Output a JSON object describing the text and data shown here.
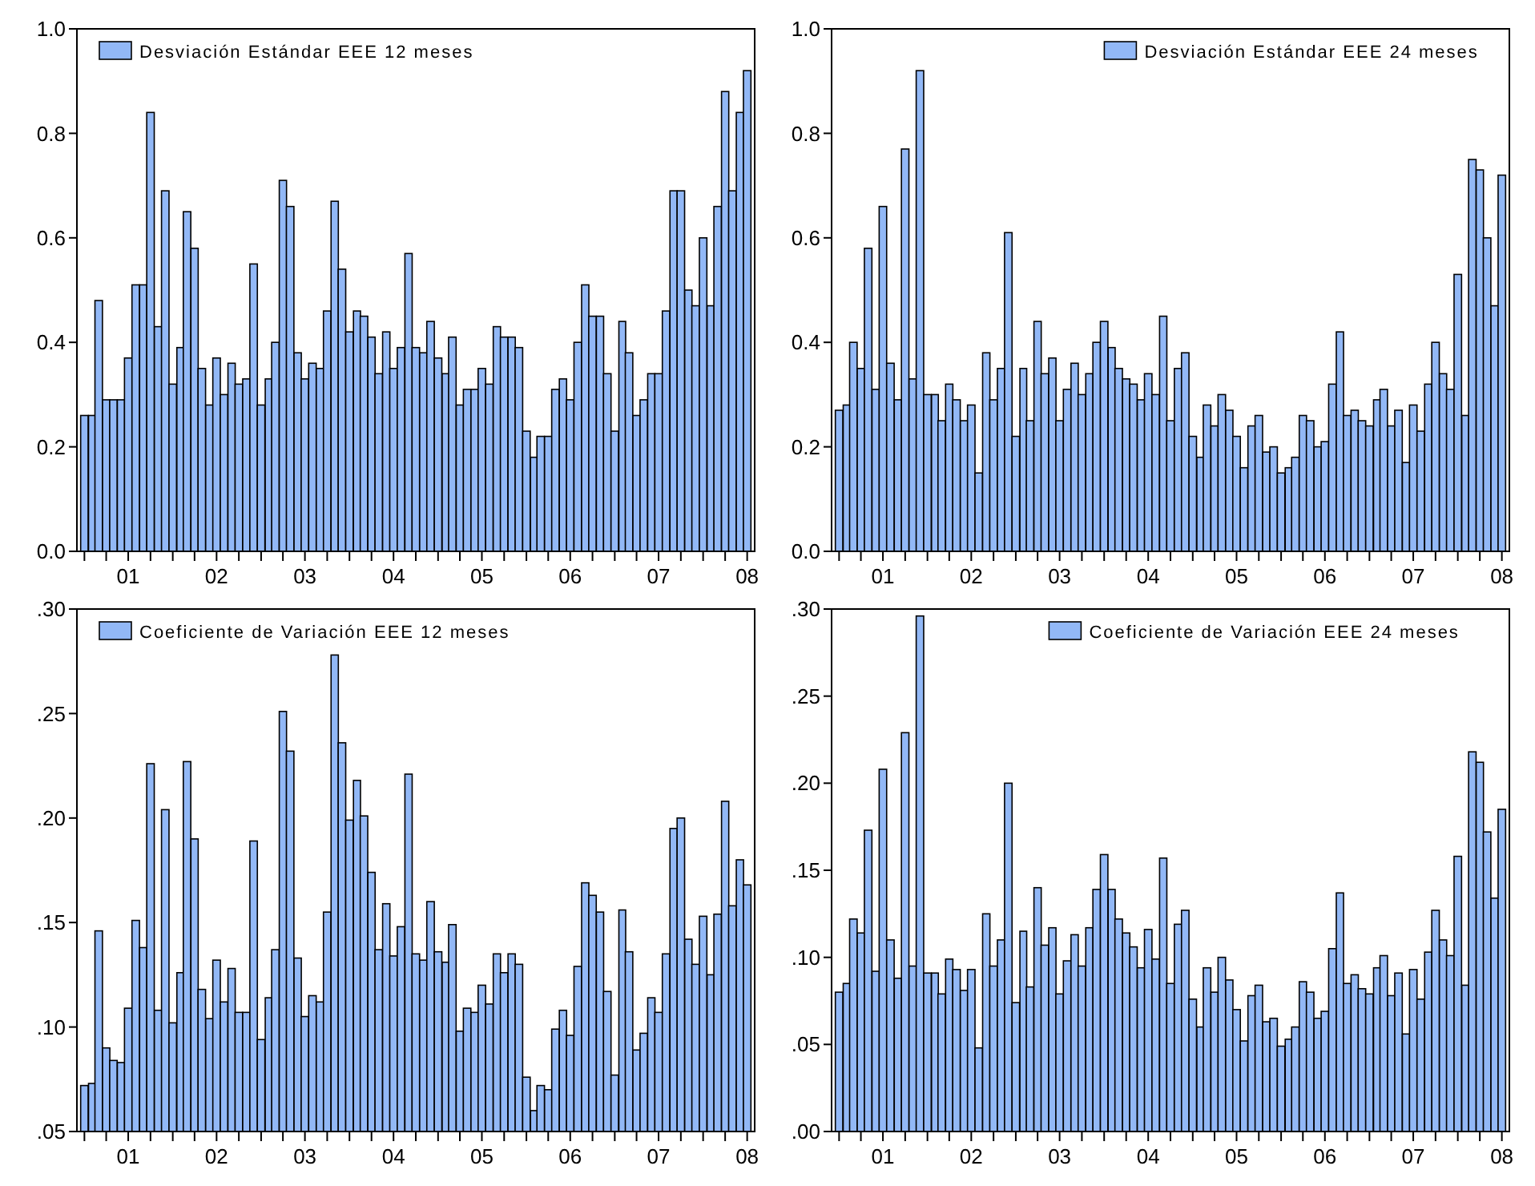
{
  "chart_data": [
    {
      "type": "bar",
      "legend": "top left",
      "xlim": [
        "2000-12",
        "2008-08"
      ],
      "ylim": [
        0,
        1.0
      ],
      "yticks": [
        {
          "value": 0,
          "label": "0.0"
        },
        {
          "value": 0.2,
          "label": "0.2"
        },
        {
          "value": 0.4,
          "label": "0.4"
        },
        {
          "value": 0.6,
          "label": "0.6"
        },
        {
          "value": 0.8,
          "label": "0.8"
        },
        {
          "value": 1.0,
          "label": "1.0"
        }
      ],
      "xticks": [
        {
          "value": "2001-01",
          "label": null
        },
        {
          "value": "2001-04",
          "label": null
        },
        {
          "value": "2001-07",
          "label": "01"
        },
        {
          "value": "2001-10",
          "label": null
        },
        {
          "value": "2002-01",
          "label": null
        },
        {
          "value": "2002-04",
          "label": null
        },
        {
          "value": "2002-07",
          "label": "02"
        },
        {
          "value": "2002-10",
          "label": null
        },
        {
          "value": "2003-01",
          "label": null
        },
        {
          "value": "2003-04",
          "label": null
        },
        {
          "value": "2003-07",
          "label": "03"
        },
        {
          "value": "2003-10",
          "label": null
        },
        {
          "value": "2004-01",
          "label": null
        },
        {
          "value": "2004-04",
          "label": null
        },
        {
          "value": "2004-07",
          "label": "04"
        },
        {
          "value": "2004-10",
          "label": null
        },
        {
          "value": "2005-01",
          "label": null
        },
        {
          "value": "2005-04",
          "label": null
        },
        {
          "value": "2005-07",
          "label": "05"
        },
        {
          "value": "2005-10",
          "label": null
        },
        {
          "value": "2006-01",
          "label": null
        },
        {
          "value": "2006-04",
          "label": null
        },
        {
          "value": "2006-07",
          "label": "06"
        },
        {
          "value": "2006-10",
          "label": null
        },
        {
          "value": "2007-01",
          "label": null
        },
        {
          "value": "2007-04",
          "label": null
        },
        {
          "value": "2007-07",
          "label": "07"
        },
        {
          "value": "2007-10",
          "label": null
        },
        {
          "value": "2008-01",
          "label": null
        },
        {
          "value": "2008-04",
          "label": null
        },
        {
          "value": "2008-07",
          "label": "08"
        }
      ],
      "x": [
        "2001-01",
        "2001-02",
        "2001-03",
        "2001-04",
        "2001-05",
        "2001-06",
        "2001-07",
        "2001-08",
        "2001-09",
        "2001-10",
        "2001-11",
        "2001-12",
        "2002-01",
        "2002-02",
        "2002-03",
        "2002-04",
        "2002-05",
        "2002-06",
        "2002-07",
        "2002-08",
        "2002-09",
        "2002-10",
        "2002-11",
        "2002-12",
        "2003-01",
        "2003-02",
        "2003-03",
        "2003-04",
        "2003-05",
        "2003-06",
        "2003-07",
        "2003-08",
        "2003-09",
        "2003-10",
        "2003-11",
        "2003-12",
        "2004-01",
        "2004-02",
        "2004-03",
        "2004-04",
        "2004-05",
        "2004-06",
        "2004-07",
        "2004-08",
        "2004-09",
        "2004-10",
        "2004-11",
        "2004-12",
        "2005-01",
        "2005-02",
        "2005-03",
        "2005-04",
        "2005-05",
        "2005-06",
        "2005-07",
        "2005-08",
        "2005-09",
        "2005-10",
        "2005-11",
        "2005-12",
        "2006-01",
        "2006-02",
        "2006-03",
        "2006-04",
        "2006-05",
        "2006-06",
        "2006-07",
        "2006-08",
        "2006-09",
        "2006-10",
        "2006-11",
        "2006-12",
        "2007-01",
        "2007-02",
        "2007-03",
        "2007-04",
        "2007-05",
        "2007-06",
        "2007-07",
        "2007-08",
        "2007-09",
        "2007-10",
        "2007-11",
        "2007-12",
        "2008-01",
        "2008-02",
        "2008-03",
        "2008-04",
        "2008-05",
        "2008-06",
        "2008-07"
      ],
      "series": [
        {
          "name": "Desviación Estándar EEE 12 meses",
          "color": "#92b8f6",
          "values": [
            0.26,
            0.26,
            0.48,
            0.29,
            0.29,
            0.29,
            0.37,
            0.51,
            0.51,
            0.84,
            0.43,
            0.69,
            0.32,
            0.39,
            0.65,
            0.58,
            0.35,
            0.28,
            0.37,
            0.3,
            0.36,
            0.32,
            0.33,
            0.55,
            0.28,
            0.33,
            0.4,
            0.71,
            0.66,
            0.38,
            0.33,
            0.36,
            0.35,
            0.46,
            0.67,
            0.54,
            0.42,
            0.46,
            0.45,
            0.41,
            0.34,
            0.42,
            0.35,
            0.39,
            0.57,
            0.39,
            0.38,
            0.44,
            0.37,
            0.34,
            0.41,
            0.28,
            0.31,
            0.31,
            0.35,
            0.32,
            0.43,
            0.41,
            0.41,
            0.39,
            0.23,
            0.18,
            0.22,
            0.22,
            0.31,
            0.33,
            0.29,
            0.4,
            0.51,
            0.45,
            0.45,
            0.34,
            0.23,
            0.44,
            0.38,
            0.26,
            0.29,
            0.34,
            0.34,
            0.46,
            0.69,
            0.69,
            0.5,
            0.47,
            0.6,
            0.47,
            0.66,
            0.88,
            0.69,
            0.84,
            0.92
          ]
        }
      ]
    },
    {
      "type": "bar",
      "legend": "top right",
      "xlim": [
        "2000-12",
        "2008-08"
      ],
      "ylim": [
        0,
        1.0
      ],
      "yticks": [
        {
          "value": 0,
          "label": "0.0"
        },
        {
          "value": 0.2,
          "label": "0.2"
        },
        {
          "value": 0.4,
          "label": "0.4"
        },
        {
          "value": 0.6,
          "label": "0.6"
        },
        {
          "value": 0.8,
          "label": "0.8"
        },
        {
          "value": 1.0,
          "label": "1.0"
        }
      ],
      "xticks": [
        {
          "value": "2001-01",
          "label": null
        },
        {
          "value": "2001-04",
          "label": null
        },
        {
          "value": "2001-07",
          "label": "01"
        },
        {
          "value": "2001-10",
          "label": null
        },
        {
          "value": "2002-01",
          "label": null
        },
        {
          "value": "2002-04",
          "label": null
        },
        {
          "value": "2002-07",
          "label": "02"
        },
        {
          "value": "2002-10",
          "label": null
        },
        {
          "value": "2003-01",
          "label": null
        },
        {
          "value": "2003-04",
          "label": null
        },
        {
          "value": "2003-07",
          "label": "03"
        },
        {
          "value": "2003-10",
          "label": null
        },
        {
          "value": "2004-01",
          "label": null
        },
        {
          "value": "2004-04",
          "label": null
        },
        {
          "value": "2004-07",
          "label": "04"
        },
        {
          "value": "2004-10",
          "label": null
        },
        {
          "value": "2005-01",
          "label": null
        },
        {
          "value": "2005-04",
          "label": null
        },
        {
          "value": "2005-07",
          "label": "05"
        },
        {
          "value": "2005-10",
          "label": null
        },
        {
          "value": "2006-01",
          "label": null
        },
        {
          "value": "2006-04",
          "label": null
        },
        {
          "value": "2006-07",
          "label": "06"
        },
        {
          "value": "2006-10",
          "label": null
        },
        {
          "value": "2007-01",
          "label": null
        },
        {
          "value": "2007-04",
          "label": null
        },
        {
          "value": "2007-07",
          "label": "07"
        },
        {
          "value": "2007-10",
          "label": null
        },
        {
          "value": "2008-01",
          "label": null
        },
        {
          "value": "2008-04",
          "label": null
        },
        {
          "value": "2008-07",
          "label": "08"
        }
      ],
      "x": [
        "2001-01",
        "2001-02",
        "2001-03",
        "2001-04",
        "2001-05",
        "2001-06",
        "2001-07",
        "2001-08",
        "2001-09",
        "2001-10",
        "2001-11",
        "2001-12",
        "2002-01",
        "2002-02",
        "2002-03",
        "2002-04",
        "2002-05",
        "2002-06",
        "2002-07",
        "2002-08",
        "2002-09",
        "2002-10",
        "2002-11",
        "2002-12",
        "2003-01",
        "2003-02",
        "2003-03",
        "2003-04",
        "2003-05",
        "2003-06",
        "2003-07",
        "2003-08",
        "2003-09",
        "2003-10",
        "2003-11",
        "2003-12",
        "2004-01",
        "2004-02",
        "2004-03",
        "2004-04",
        "2004-05",
        "2004-06",
        "2004-07",
        "2004-08",
        "2004-09",
        "2004-10",
        "2004-11",
        "2004-12",
        "2005-01",
        "2005-02",
        "2005-03",
        "2005-04",
        "2005-05",
        "2005-06",
        "2005-07",
        "2005-08",
        "2005-09",
        "2005-10",
        "2005-11",
        "2005-12",
        "2006-01",
        "2006-02",
        "2006-03",
        "2006-04",
        "2006-05",
        "2006-06",
        "2006-07",
        "2006-08",
        "2006-09",
        "2006-10",
        "2006-11",
        "2006-12",
        "2007-01",
        "2007-02",
        "2007-03",
        "2007-04",
        "2007-05",
        "2007-06",
        "2007-07",
        "2007-08",
        "2007-09",
        "2007-10",
        "2007-11",
        "2007-12",
        "2008-01",
        "2008-02",
        "2008-03",
        "2008-04",
        "2008-05",
        "2008-06",
        "2008-07"
      ],
      "series": [
        {
          "name": "Desviación Estándar EEE 24 meses",
          "color": "#92b8f6",
          "values": [
            0.27,
            0.28,
            0.4,
            0.35,
            0.58,
            0.31,
            0.66,
            0.36,
            0.29,
            0.77,
            0.33,
            0.92,
            0.3,
            0.3,
            0.25,
            0.32,
            0.29,
            0.25,
            0.28,
            0.15,
            0.38,
            0.29,
            0.35,
            0.61,
            0.22,
            0.35,
            0.25,
            0.44,
            0.34,
            0.37,
            0.25,
            0.31,
            0.36,
            0.3,
            0.34,
            0.4,
            0.44,
            0.39,
            0.35,
            0.33,
            0.32,
            0.29,
            0.34,
            0.3,
            0.45,
            0.25,
            0.35,
            0.38,
            0.22,
            0.18,
            0.28,
            0.24,
            0.3,
            0.27,
            0.22,
            0.16,
            0.24,
            0.26,
            0.19,
            0.2,
            0.15,
            0.16,
            0.18,
            0.26,
            0.25,
            0.2,
            0.21,
            0.32,
            0.42,
            0.26,
            0.27,
            0.25,
            0.24,
            0.29,
            0.31,
            0.24,
            0.27,
            0.17,
            0.28,
            0.23,
            0.32,
            0.4,
            0.34,
            0.31,
            0.53,
            0.26,
            0.75,
            0.73,
            0.6,
            0.47,
            0.72
          ]
        }
      ]
    },
    {
      "type": "bar",
      "legend": "top left",
      "xlim": [
        "2000-12",
        "2008-08"
      ],
      "ylim": [
        0.05,
        0.3
      ],
      "yticks": [
        {
          "value": 0.05,
          "label": ".05"
        },
        {
          "value": 0.1,
          "label": ".10"
        },
        {
          "value": 0.15,
          "label": ".15"
        },
        {
          "value": 0.2,
          "label": ".20"
        },
        {
          "value": 0.25,
          "label": ".25"
        },
        {
          "value": 0.3,
          "label": ".30"
        }
      ],
      "xticks": [
        {
          "value": "2001-01",
          "label": null
        },
        {
          "value": "2001-04",
          "label": null
        },
        {
          "value": "2001-07",
          "label": "01"
        },
        {
          "value": "2001-10",
          "label": null
        },
        {
          "value": "2002-01",
          "label": null
        },
        {
          "value": "2002-04",
          "label": null
        },
        {
          "value": "2002-07",
          "label": "02"
        },
        {
          "value": "2002-10",
          "label": null
        },
        {
          "value": "2003-01",
          "label": null
        },
        {
          "value": "2003-04",
          "label": null
        },
        {
          "value": "2003-07",
          "label": "03"
        },
        {
          "value": "2003-10",
          "label": null
        },
        {
          "value": "2004-01",
          "label": null
        },
        {
          "value": "2004-04",
          "label": null
        },
        {
          "value": "2004-07",
          "label": "04"
        },
        {
          "value": "2004-10",
          "label": null
        },
        {
          "value": "2005-01",
          "label": null
        },
        {
          "value": "2005-04",
          "label": null
        },
        {
          "value": "2005-07",
          "label": "05"
        },
        {
          "value": "2005-10",
          "label": null
        },
        {
          "value": "2006-01",
          "label": null
        },
        {
          "value": "2006-04",
          "label": null
        },
        {
          "value": "2006-07",
          "label": "06"
        },
        {
          "value": "2006-10",
          "label": null
        },
        {
          "value": "2007-01",
          "label": null
        },
        {
          "value": "2007-04",
          "label": null
        },
        {
          "value": "2007-07",
          "label": "07"
        },
        {
          "value": "2007-10",
          "label": null
        },
        {
          "value": "2008-01",
          "label": null
        },
        {
          "value": "2008-04",
          "label": null
        },
        {
          "value": "2008-07",
          "label": "08"
        }
      ],
      "x": [
        "2001-01",
        "2001-02",
        "2001-03",
        "2001-04",
        "2001-05",
        "2001-06",
        "2001-07",
        "2001-08",
        "2001-09",
        "2001-10",
        "2001-11",
        "2001-12",
        "2002-01",
        "2002-02",
        "2002-03",
        "2002-04",
        "2002-05",
        "2002-06",
        "2002-07",
        "2002-08",
        "2002-09",
        "2002-10",
        "2002-11",
        "2002-12",
        "2003-01",
        "2003-02",
        "2003-03",
        "2003-04",
        "2003-05",
        "2003-06",
        "2003-07",
        "2003-08",
        "2003-09",
        "2003-10",
        "2003-11",
        "2003-12",
        "2004-01",
        "2004-02",
        "2004-03",
        "2004-04",
        "2004-05",
        "2004-06",
        "2004-07",
        "2004-08",
        "2004-09",
        "2004-10",
        "2004-11",
        "2004-12",
        "2005-01",
        "2005-02",
        "2005-03",
        "2005-04",
        "2005-05",
        "2005-06",
        "2005-07",
        "2005-08",
        "2005-09",
        "2005-10",
        "2005-11",
        "2005-12",
        "2006-01",
        "2006-02",
        "2006-03",
        "2006-04",
        "2006-05",
        "2006-06",
        "2006-07",
        "2006-08",
        "2006-09",
        "2006-10",
        "2006-11",
        "2006-12",
        "2007-01",
        "2007-02",
        "2007-03",
        "2007-04",
        "2007-05",
        "2007-06",
        "2007-07",
        "2007-08",
        "2007-09",
        "2007-10",
        "2007-11",
        "2007-12",
        "2008-01",
        "2008-02",
        "2008-03",
        "2008-04",
        "2008-05",
        "2008-06",
        "2008-07"
      ],
      "series": [
        {
          "name": "Coeficiente de Variación EEE 12 meses",
          "color": "#92b8f6",
          "values": [
            0.072,
            0.073,
            0.146,
            0.09,
            0.084,
            0.083,
            0.109,
            0.151,
            0.138,
            0.226,
            0.108,
            0.204,
            0.102,
            0.126,
            0.227,
            0.19,
            0.118,
            0.104,
            0.132,
            0.112,
            0.128,
            0.107,
            0.107,
            0.189,
            0.094,
            0.114,
            0.137,
            0.251,
            0.232,
            0.133,
            0.105,
            0.115,
            0.112,
            0.155,
            0.278,
            0.236,
            0.199,
            0.218,
            0.201,
            0.174,
            0.137,
            0.159,
            0.134,
            0.148,
            0.221,
            0.135,
            0.132,
            0.16,
            0.136,
            0.131,
            0.149,
            0.098,
            0.109,
            0.107,
            0.12,
            0.111,
            0.135,
            0.126,
            0.135,
            0.13,
            0.076,
            0.06,
            0.072,
            0.07,
            0.099,
            0.108,
            0.096,
            0.129,
            0.169,
            0.163,
            0.155,
            0.117,
            0.077,
            0.156,
            0.136,
            0.089,
            0.097,
            0.114,
            0.107,
            0.135,
            0.195,
            0.2,
            0.142,
            0.13,
            0.153,
            0.125,
            0.154,
            0.208,
            0.158,
            0.18,
            0.168
          ]
        }
      ]
    },
    {
      "type": "bar",
      "legend": "top right",
      "xlim": [
        "2000-12",
        "2008-08"
      ],
      "ylim": [
        0,
        0.3
      ],
      "yticks": [
        {
          "value": 0,
          "label": ".00"
        },
        {
          "value": 0.05,
          "label": ".05"
        },
        {
          "value": 0.1,
          "label": ".10"
        },
        {
          "value": 0.15,
          "label": ".15"
        },
        {
          "value": 0.2,
          "label": ".20"
        },
        {
          "value": 0.25,
          "label": ".25"
        },
        {
          "value": 0.3,
          "label": ".30"
        }
      ],
      "xticks": [
        {
          "value": "2001-01",
          "label": null
        },
        {
          "value": "2001-04",
          "label": null
        },
        {
          "value": "2001-07",
          "label": "01"
        },
        {
          "value": "2001-10",
          "label": null
        },
        {
          "value": "2002-01",
          "label": null
        },
        {
          "value": "2002-04",
          "label": null
        },
        {
          "value": "2002-07",
          "label": "02"
        },
        {
          "value": "2002-10",
          "label": null
        },
        {
          "value": "2003-01",
          "label": null
        },
        {
          "value": "2003-04",
          "label": null
        },
        {
          "value": "2003-07",
          "label": "03"
        },
        {
          "value": "2003-10",
          "label": null
        },
        {
          "value": "2004-01",
          "label": null
        },
        {
          "value": "2004-04",
          "label": null
        },
        {
          "value": "2004-07",
          "label": "04"
        },
        {
          "value": "2004-10",
          "label": null
        },
        {
          "value": "2005-01",
          "label": null
        },
        {
          "value": "2005-04",
          "label": null
        },
        {
          "value": "2005-07",
          "label": "05"
        },
        {
          "value": "2005-10",
          "label": null
        },
        {
          "value": "2006-01",
          "label": null
        },
        {
          "value": "2006-04",
          "label": null
        },
        {
          "value": "2006-07",
          "label": "06"
        },
        {
          "value": "2006-10",
          "label": null
        },
        {
          "value": "2007-01",
          "label": null
        },
        {
          "value": "2007-04",
          "label": null
        },
        {
          "value": "2007-07",
          "label": "07"
        },
        {
          "value": "2007-10",
          "label": null
        },
        {
          "value": "2008-01",
          "label": null
        },
        {
          "value": "2008-04",
          "label": null
        },
        {
          "value": "2008-07",
          "label": "08"
        }
      ],
      "x": [
        "2001-01",
        "2001-02",
        "2001-03",
        "2001-04",
        "2001-05",
        "2001-06",
        "2001-07",
        "2001-08",
        "2001-09",
        "2001-10",
        "2001-11",
        "2001-12",
        "2002-01",
        "2002-02",
        "2002-03",
        "2002-04",
        "2002-05",
        "2002-06",
        "2002-07",
        "2002-08",
        "2002-09",
        "2002-10",
        "2002-11",
        "2002-12",
        "2003-01",
        "2003-02",
        "2003-03",
        "2003-04",
        "2003-05",
        "2003-06",
        "2003-07",
        "2003-08",
        "2003-09",
        "2003-10",
        "2003-11",
        "2003-12",
        "2004-01",
        "2004-02",
        "2004-03",
        "2004-04",
        "2004-05",
        "2004-06",
        "2004-07",
        "2004-08",
        "2004-09",
        "2004-10",
        "2004-11",
        "2004-12",
        "2005-01",
        "2005-02",
        "2005-03",
        "2005-04",
        "2005-05",
        "2005-06",
        "2005-07",
        "2005-08",
        "2005-09",
        "2005-10",
        "2005-11",
        "2005-12",
        "2006-01",
        "2006-02",
        "2006-03",
        "2006-04",
        "2006-05",
        "2006-06",
        "2006-07",
        "2006-08",
        "2006-09",
        "2006-10",
        "2006-11",
        "2006-12",
        "2007-01",
        "2007-02",
        "2007-03",
        "2007-04",
        "2007-05",
        "2007-06",
        "2007-07",
        "2007-08",
        "2007-09",
        "2007-10",
        "2007-11",
        "2007-12",
        "2008-01",
        "2008-02",
        "2008-03",
        "2008-04",
        "2008-05",
        "2008-06",
        "2008-07"
      ],
      "series": [
        {
          "name": "Coeficiente de Variación EEE 24 meses",
          "color": "#92b8f6",
          "values": [
            0.08,
            0.085,
            0.122,
            0.114,
            0.173,
            0.092,
            0.208,
            0.11,
            0.088,
            0.229,
            0.095,
            0.296,
            0.091,
            0.091,
            0.079,
            0.099,
            0.093,
            0.081,
            0.093,
            0.048,
            0.125,
            0.095,
            0.11,
            0.2,
            0.074,
            0.115,
            0.083,
            0.14,
            0.107,
            0.117,
            0.079,
            0.098,
            0.113,
            0.095,
            0.117,
            0.139,
            0.159,
            0.139,
            0.122,
            0.114,
            0.106,
            0.094,
            0.116,
            0.099,
            0.157,
            0.085,
            0.119,
            0.127,
            0.076,
            0.06,
            0.094,
            0.08,
            0.1,
            0.087,
            0.07,
            0.052,
            0.078,
            0.084,
            0.063,
            0.065,
            0.049,
            0.053,
            0.06,
            0.086,
            0.08,
            0.065,
            0.069,
            0.105,
            0.137,
            0.085,
            0.09,
            0.082,
            0.079,
            0.094,
            0.101,
            0.078,
            0.091,
            0.056,
            0.093,
            0.076,
            0.103,
            0.127,
            0.11,
            0.101,
            0.158,
            0.084,
            0.218,
            0.212,
            0.172,
            0.134,
            0.185
          ]
        }
      ]
    }
  ]
}
